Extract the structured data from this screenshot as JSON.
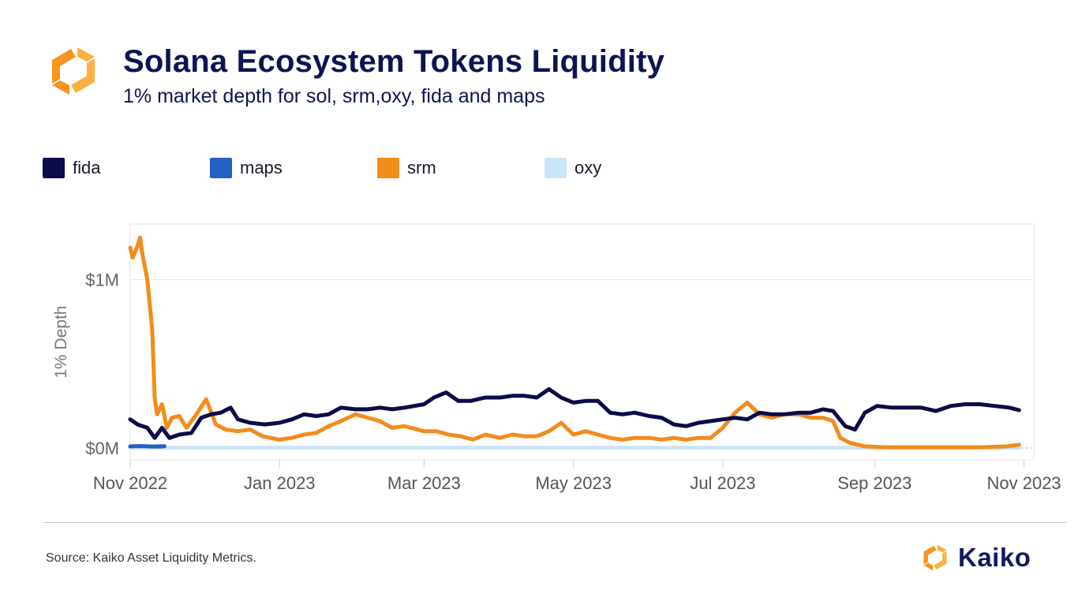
{
  "header": {
    "title": "Solana Ecosystem Tokens Liquidity",
    "subtitle": "1% market depth for sol, srm,oxy, fida and maps"
  },
  "footer": {
    "source": "Source: Kaiko Asset Liquidity Metrics.",
    "brand": "Kaiko"
  },
  "icons": {
    "logo": "kaiko-hex-logo-icon",
    "brand": "kaiko-hex-logo-icon"
  },
  "colors": {
    "fida": "#0b0b4a",
    "maps": "#2360c4",
    "srm": "#f28c1c",
    "oxy": "#c9e5f8",
    "logo_orange": "#f7941d",
    "logo_yellow": "#fbb040"
  },
  "chart_data": {
    "type": "line",
    "title": "Solana Ecosystem Tokens Liquidity",
    "subtitle": "1% market depth for sol, srm,oxy, fida and maps",
    "ylabel": "1% Depth",
    "xlabel": "",
    "x_range": [
      "2022-11-01",
      "2023-11-05"
    ],
    "ylim": [
      -70000,
      1330000
    ],
    "x_ticks": [
      {
        "date": "2022-11-01",
        "label": "Nov 2022"
      },
      {
        "date": "2023-01-01",
        "label": "Jan 2023"
      },
      {
        "date": "2023-03-01",
        "label": "Mar 2023"
      },
      {
        "date": "2023-05-01",
        "label": "May 2023"
      },
      {
        "date": "2023-07-01",
        "label": "Jul 2023"
      },
      {
        "date": "2023-09-01",
        "label": "Sep 2023"
      },
      {
        "date": "2023-11-01",
        "label": "Nov 2023"
      }
    ],
    "y_ticks": [
      {
        "value": 0,
        "label": "$0M"
      },
      {
        "value": 1000000,
        "label": "$1M"
      }
    ],
    "grid": true,
    "legend_position": "top-left",
    "series": [
      {
        "name": "fida",
        "points": [
          [
            "2022-11-01",
            170000
          ],
          [
            "2022-11-04",
            140000
          ],
          [
            "2022-11-08",
            120000
          ],
          [
            "2022-11-11",
            60000
          ],
          [
            "2022-11-14",
            120000
          ],
          [
            "2022-11-17",
            60000
          ],
          [
            "2022-11-21",
            80000
          ],
          [
            "2022-11-26",
            90000
          ],
          [
            "2022-11-30",
            180000
          ],
          [
            "2022-12-04",
            200000
          ],
          [
            "2022-12-08",
            210000
          ],
          [
            "2022-12-12",
            240000
          ],
          [
            "2022-12-15",
            170000
          ],
          [
            "2022-12-20",
            150000
          ],
          [
            "2022-12-26",
            140000
          ],
          [
            "2023-01-01",
            150000
          ],
          [
            "2023-01-06",
            170000
          ],
          [
            "2023-01-11",
            200000
          ],
          [
            "2023-01-16",
            190000
          ],
          [
            "2023-01-21",
            200000
          ],
          [
            "2023-01-26",
            240000
          ],
          [
            "2023-02-01",
            230000
          ],
          [
            "2023-02-06",
            230000
          ],
          [
            "2023-02-11",
            240000
          ],
          [
            "2023-02-16",
            230000
          ],
          [
            "2023-02-21",
            240000
          ],
          [
            "2023-03-01",
            260000
          ],
          [
            "2023-03-05",
            300000
          ],
          [
            "2023-03-10",
            330000
          ],
          [
            "2023-03-15",
            280000
          ],
          [
            "2023-03-20",
            280000
          ],
          [
            "2023-03-26",
            300000
          ],
          [
            "2023-04-01",
            300000
          ],
          [
            "2023-04-06",
            310000
          ],
          [
            "2023-04-11",
            310000
          ],
          [
            "2023-04-16",
            300000
          ],
          [
            "2023-04-21",
            350000
          ],
          [
            "2023-04-26",
            300000
          ],
          [
            "2023-05-01",
            270000
          ],
          [
            "2023-05-06",
            280000
          ],
          [
            "2023-05-11",
            280000
          ],
          [
            "2023-05-16",
            210000
          ],
          [
            "2023-05-21",
            200000
          ],
          [
            "2023-05-26",
            210000
          ],
          [
            "2023-06-01",
            190000
          ],
          [
            "2023-06-06",
            180000
          ],
          [
            "2023-06-11",
            140000
          ],
          [
            "2023-06-16",
            130000
          ],
          [
            "2023-06-21",
            150000
          ],
          [
            "2023-06-26",
            160000
          ],
          [
            "2023-07-01",
            170000
          ],
          [
            "2023-07-06",
            180000
          ],
          [
            "2023-07-11",
            170000
          ],
          [
            "2023-07-16",
            210000
          ],
          [
            "2023-07-21",
            200000
          ],
          [
            "2023-07-26",
            200000
          ],
          [
            "2023-08-01",
            210000
          ],
          [
            "2023-08-06",
            210000
          ],
          [
            "2023-08-11",
            230000
          ],
          [
            "2023-08-15",
            220000
          ],
          [
            "2023-08-20",
            130000
          ],
          [
            "2023-08-24",
            110000
          ],
          [
            "2023-08-28",
            210000
          ],
          [
            "2023-09-02",
            250000
          ],
          [
            "2023-09-08",
            240000
          ],
          [
            "2023-09-14",
            240000
          ],
          [
            "2023-09-20",
            240000
          ],
          [
            "2023-09-26",
            220000
          ],
          [
            "2023-10-02",
            250000
          ],
          [
            "2023-10-08",
            260000
          ],
          [
            "2023-10-14",
            260000
          ],
          [
            "2023-10-20",
            250000
          ],
          [
            "2023-10-26",
            240000
          ],
          [
            "2023-10-30",
            225000
          ]
        ]
      },
      {
        "name": "maps",
        "points": [
          [
            "2022-11-01",
            10000
          ],
          [
            "2022-11-05",
            12000
          ],
          [
            "2022-11-10",
            9000
          ],
          [
            "2022-11-15",
            11000
          ],
          [
            "2022-11-13",
            8000
          ]
        ]
      },
      {
        "name": "srm",
        "points": [
          [
            "2022-11-01",
            1190000
          ],
          [
            "2022-11-02",
            1130000
          ],
          [
            "2022-11-04",
            1200000
          ],
          [
            "2022-11-05",
            1250000
          ],
          [
            "2022-11-06",
            1150000
          ],
          [
            "2022-11-08",
            1000000
          ],
          [
            "2022-11-10",
            700000
          ],
          [
            "2022-11-11",
            300000
          ],
          [
            "2022-11-12",
            200000
          ],
          [
            "2022-11-14",
            260000
          ],
          [
            "2022-11-16",
            120000
          ],
          [
            "2022-11-18",
            180000
          ],
          [
            "2022-11-21",
            190000
          ],
          [
            "2022-11-24",
            120000
          ],
          [
            "2022-11-28",
            200000
          ],
          [
            "2022-12-02",
            290000
          ],
          [
            "2022-12-06",
            140000
          ],
          [
            "2022-12-10",
            110000
          ],
          [
            "2022-12-15",
            100000
          ],
          [
            "2022-12-20",
            110000
          ],
          [
            "2022-12-25",
            70000
          ],
          [
            "2023-01-01",
            50000
          ],
          [
            "2023-01-06",
            60000
          ],
          [
            "2023-01-11",
            80000
          ],
          [
            "2023-01-16",
            90000
          ],
          [
            "2023-01-21",
            130000
          ],
          [
            "2023-01-26",
            160000
          ],
          [
            "2023-02-01",
            200000
          ],
          [
            "2023-02-06",
            180000
          ],
          [
            "2023-02-11",
            160000
          ],
          [
            "2023-02-16",
            120000
          ],
          [
            "2023-02-21",
            130000
          ],
          [
            "2023-03-01",
            100000
          ],
          [
            "2023-03-06",
            100000
          ],
          [
            "2023-03-11",
            80000
          ],
          [
            "2023-03-16",
            70000
          ],
          [
            "2023-03-21",
            50000
          ],
          [
            "2023-03-26",
            80000
          ],
          [
            "2023-04-01",
            60000
          ],
          [
            "2023-04-06",
            80000
          ],
          [
            "2023-04-11",
            70000
          ],
          [
            "2023-04-16",
            70000
          ],
          [
            "2023-04-21",
            100000
          ],
          [
            "2023-04-26",
            150000
          ],
          [
            "2023-05-01",
            80000
          ],
          [
            "2023-05-06",
            100000
          ],
          [
            "2023-05-11",
            80000
          ],
          [
            "2023-05-16",
            60000
          ],
          [
            "2023-05-21",
            50000
          ],
          [
            "2023-05-26",
            60000
          ],
          [
            "2023-06-01",
            60000
          ],
          [
            "2023-06-06",
            50000
          ],
          [
            "2023-06-11",
            60000
          ],
          [
            "2023-06-16",
            50000
          ],
          [
            "2023-06-21",
            60000
          ],
          [
            "2023-06-26",
            60000
          ],
          [
            "2023-07-01",
            120000
          ],
          [
            "2023-07-06",
            210000
          ],
          [
            "2023-07-11",
            270000
          ],
          [
            "2023-07-16",
            200000
          ],
          [
            "2023-07-21",
            180000
          ],
          [
            "2023-07-26",
            200000
          ],
          [
            "2023-08-01",
            200000
          ],
          [
            "2023-08-06",
            180000
          ],
          [
            "2023-08-11",
            180000
          ],
          [
            "2023-08-15",
            160000
          ],
          [
            "2023-08-18",
            60000
          ],
          [
            "2023-08-22",
            30000
          ],
          [
            "2023-08-28",
            10000
          ],
          [
            "2023-09-05",
            5000
          ],
          [
            "2023-09-15",
            5000
          ],
          [
            "2023-09-25",
            5000
          ],
          [
            "2023-10-05",
            5000
          ],
          [
            "2023-10-15",
            5000
          ],
          [
            "2023-10-25",
            10000
          ],
          [
            "2023-10-30",
            20000
          ]
        ]
      },
      {
        "name": "oxy",
        "points": [
          [
            "2022-11-01",
            2000
          ],
          [
            "2023-01-01",
            2000
          ],
          [
            "2023-03-01",
            2000
          ],
          [
            "2023-05-01",
            2000
          ],
          [
            "2023-07-01",
            2000
          ],
          [
            "2023-09-01",
            2000
          ],
          [
            "2023-10-30",
            2000
          ]
        ]
      }
    ]
  }
}
